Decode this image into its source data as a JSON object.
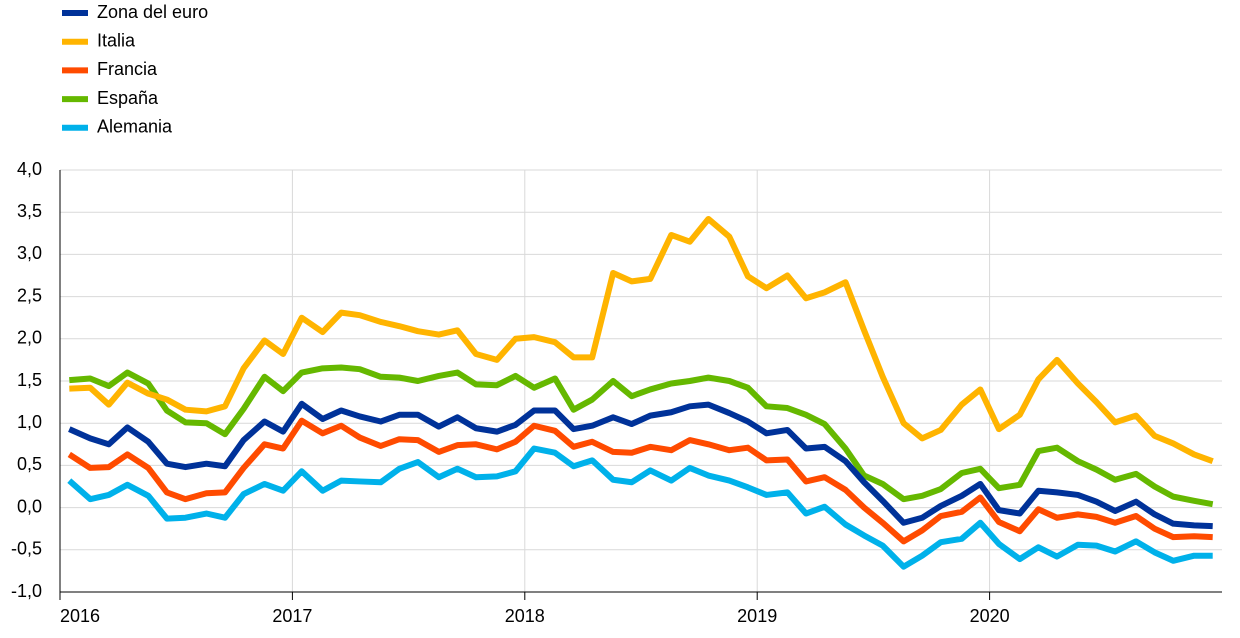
{
  "chart_data": {
    "type": "line",
    "x": [
      2016.04,
      2016.13,
      2016.21,
      2016.29,
      2016.38,
      2016.46,
      2016.54,
      2016.63,
      2016.71,
      2016.79,
      2016.88,
      2016.96,
      2017.04,
      2017.13,
      2017.21,
      2017.29,
      2017.38,
      2017.46,
      2017.54,
      2017.63,
      2017.71,
      2017.79,
      2017.88,
      2017.96,
      2018.04,
      2018.13,
      2018.21,
      2018.29,
      2018.38,
      2018.46,
      2018.54,
      2018.63,
      2018.71,
      2018.79,
      2018.88,
      2018.96,
      2019.04,
      2019.13,
      2019.21,
      2019.29,
      2019.38,
      2019.46,
      2019.54,
      2019.63,
      2019.71,
      2019.79,
      2019.88,
      2019.96,
      2020.04,
      2020.13,
      2020.21,
      2020.29,
      2020.38,
      2020.46,
      2020.54,
      2020.63,
      2020.71,
      2020.79,
      2020.88,
      2020.96
    ],
    "series": [
      {
        "name": "Zona del euro",
        "color": "#003299",
        "values": [
          0.93,
          0.82,
          0.75,
          0.95,
          0.78,
          0.52,
          0.48,
          0.52,
          0.49,
          0.8,
          1.02,
          0.9,
          1.23,
          1.05,
          1.15,
          1.08,
          1.02,
          1.1,
          1.1,
          0.96,
          1.07,
          0.94,
          0.9,
          0.98,
          1.15,
          1.15,
          0.93,
          0.97,
          1.07,
          0.99,
          1.09,
          1.13,
          1.2,
          1.22,
          1.12,
          1.02,
          0.88,
          0.92,
          0.7,
          0.72,
          0.55,
          0.3,
          0.08,
          -0.18,
          -0.12,
          0.02,
          0.14,
          0.28,
          -0.03,
          -0.07,
          0.2,
          0.18,
          0.15,
          0.07,
          -0.04,
          0.07,
          -0.08,
          -0.19,
          -0.21,
          -0.22
        ]
      },
      {
        "name": "Italia",
        "color": "#ffb400",
        "values": [
          1.41,
          1.42,
          1.22,
          1.48,
          1.35,
          1.28,
          1.16,
          1.14,
          1.2,
          1.65,
          1.98,
          1.82,
          2.25,
          2.08,
          2.31,
          2.28,
          2.2,
          2.15,
          2.09,
          2.05,
          2.1,
          1.82,
          1.75,
          2.0,
          2.02,
          1.96,
          1.78,
          1.78,
          2.78,
          2.68,
          2.71,
          3.23,
          3.15,
          3.42,
          3.21,
          2.74,
          2.6,
          2.75,
          2.48,
          2.55,
          2.67,
          2.1,
          1.55,
          1.0,
          0.82,
          0.92,
          1.22,
          1.4,
          0.93,
          1.1,
          1.52,
          1.75,
          1.47,
          1.25,
          1.01,
          1.09,
          0.85,
          0.76,
          0.63,
          0.55
        ]
      },
      {
        "name": "Francia",
        "color": "#ff4b00",
        "values": [
          0.63,
          0.47,
          0.48,
          0.63,
          0.47,
          0.18,
          0.1,
          0.17,
          0.18,
          0.47,
          0.75,
          0.7,
          1.03,
          0.88,
          0.97,
          0.83,
          0.73,
          0.81,
          0.8,
          0.66,
          0.74,
          0.75,
          0.69,
          0.78,
          0.97,
          0.91,
          0.72,
          0.78,
          0.66,
          0.65,
          0.72,
          0.68,
          0.8,
          0.75,
          0.68,
          0.71,
          0.56,
          0.57,
          0.31,
          0.36,
          0.21,
          0.0,
          -0.18,
          -0.4,
          -0.27,
          -0.1,
          -0.05,
          0.12,
          -0.17,
          -0.28,
          -0.02,
          -0.12,
          -0.08,
          -0.11,
          -0.18,
          -0.1,
          -0.25,
          -0.35,
          -0.34,
          -0.35
        ]
      },
      {
        "name": "España",
        "color": "#65b800",
        "values": [
          1.51,
          1.53,
          1.44,
          1.6,
          1.47,
          1.15,
          1.01,
          1.0,
          0.87,
          1.17,
          1.55,
          1.38,
          1.6,
          1.65,
          1.66,
          1.64,
          1.55,
          1.54,
          1.5,
          1.56,
          1.6,
          1.46,
          1.45,
          1.56,
          1.42,
          1.53,
          1.16,
          1.28,
          1.5,
          1.32,
          1.4,
          1.47,
          1.5,
          1.54,
          1.5,
          1.42,
          1.2,
          1.18,
          1.1,
          0.99,
          0.7,
          0.38,
          0.28,
          0.1,
          0.14,
          0.22,
          0.41,
          0.46,
          0.23,
          0.27,
          0.67,
          0.71,
          0.55,
          0.45,
          0.33,
          0.4,
          0.25,
          0.13,
          0.08,
          0.04
        ]
      },
      {
        "name": "Alemania",
        "color": "#00b1ea",
        "values": [
          0.32,
          0.1,
          0.15,
          0.27,
          0.14,
          -0.13,
          -0.12,
          -0.07,
          -0.12,
          0.16,
          0.28,
          0.2,
          0.43,
          0.2,
          0.32,
          0.31,
          0.3,
          0.46,
          0.54,
          0.36,
          0.46,
          0.36,
          0.37,
          0.43,
          0.7,
          0.65,
          0.49,
          0.56,
          0.33,
          0.3,
          0.44,
          0.32,
          0.47,
          0.38,
          0.32,
          0.24,
          0.15,
          0.18,
          -0.07,
          0.01,
          -0.2,
          -0.33,
          -0.45,
          -0.7,
          -0.57,
          -0.41,
          -0.37,
          -0.18,
          -0.43,
          -0.61,
          -0.47,
          -0.58,
          -0.44,
          -0.45,
          -0.52,
          -0.4,
          -0.53,
          -0.63,
          -0.57,
          -0.57
        ]
      }
    ],
    "xlim": [
      2016,
      2021
    ],
    "xticks": [
      2016,
      2017,
      2018,
      2019,
      2020
    ],
    "ylim": [
      -1,
      4
    ],
    "yticks": [
      {
        "value": 4,
        "label": "4,0"
      },
      {
        "value": 3.5,
        "label": "3,5"
      },
      {
        "value": 3,
        "label": "3,0"
      },
      {
        "value": 2.5,
        "label": "2,5"
      },
      {
        "value": 2,
        "label": "2,0"
      },
      {
        "value": 1.5,
        "label": "1,5"
      },
      {
        "value": 1,
        "label": "1,0"
      },
      {
        "value": 0.5,
        "label": "0,5"
      },
      {
        "value": 0,
        "label": "0,0"
      },
      {
        "value": -0.5,
        "label": "-0,5"
      },
      {
        "value": -1,
        "label": "-1,0"
      }
    ],
    "grid": true
  }
}
